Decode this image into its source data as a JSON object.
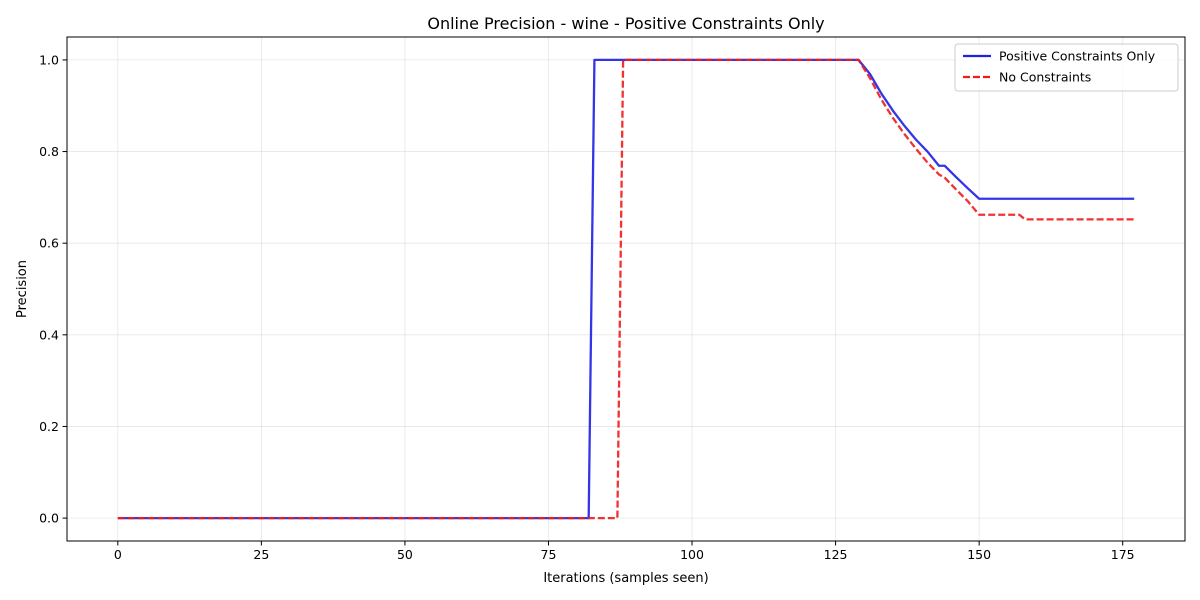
{
  "chart_data": {
    "type": "line",
    "title": "Online Precision - wine - Positive Constraints Only",
    "xlabel": "Iterations (samples seen)",
    "ylabel": "Precision",
    "xlim": [
      -8.85,
      185.85
    ],
    "ylim": [
      -0.05,
      1.05
    ],
    "xticks": [
      0,
      25,
      50,
      75,
      100,
      125,
      150,
      175
    ],
    "yticks": [
      0.0,
      0.2,
      0.4,
      0.6,
      0.8,
      1.0
    ],
    "grid": true,
    "legend_position": "top-right",
    "series": [
      {
        "name": "Positive Constraints Only",
        "color": "#1f1fe6",
        "style": "solid",
        "points": [
          [
            0,
            0
          ],
          [
            82,
            0
          ],
          [
            83,
            1
          ],
          [
            129,
            1
          ],
          [
            131,
            0.969
          ],
          [
            133,
            0.926
          ],
          [
            135,
            0.889
          ],
          [
            137,
            0.856
          ],
          [
            139,
            0.826
          ],
          [
            141,
            0.8
          ],
          [
            143,
            0.769
          ],
          [
            144,
            0.769
          ],
          [
            146,
            0.744
          ],
          [
            148,
            0.72
          ],
          [
            150,
            0.697
          ],
          [
            177,
            0.697
          ]
        ]
      },
      {
        "name": "No Constraints",
        "color": "#ee1c1c",
        "style": "dashed",
        "points": [
          [
            0,
            0
          ],
          [
            87,
            0
          ],
          [
            88,
            1
          ],
          [
            129,
            1
          ],
          [
            131,
            0.96
          ],
          [
            133,
            0.913
          ],
          [
            135,
            0.873
          ],
          [
            137,
            0.838
          ],
          [
            139,
            0.806
          ],
          [
            141,
            0.776
          ],
          [
            143,
            0.75
          ],
          [
            144,
            0.743
          ],
          [
            146,
            0.717
          ],
          [
            148,
            0.692
          ],
          [
            150,
            0.662
          ],
          [
            157,
            0.662
          ],
          [
            158,
            0.652
          ],
          [
            177,
            0.652
          ]
        ]
      }
    ]
  }
}
